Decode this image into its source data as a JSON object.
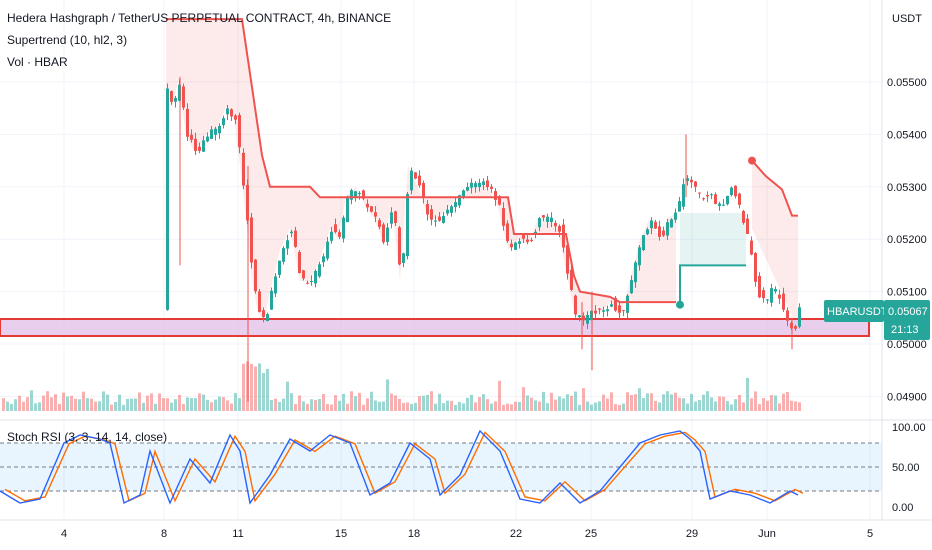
{
  "header": {
    "title": "Hedera Hashgraph / TetherUS PERPETUAL CONTRACT, 4h, BINANCE",
    "indicator_1": "Supertrend (10, hl2, 3)",
    "indicator_2": "Vol · HBAR"
  },
  "price_axis": {
    "currency": "USDT",
    "ticks": [
      "0.05500",
      "0.05400",
      "0.05300",
      "0.05200",
      "0.05100",
      "0.05000",
      "0.04900"
    ]
  },
  "price_tag": {
    "symbol": "HBARUSDT.P",
    "price": "0.05067",
    "countdown": "21:13"
  },
  "rsi": {
    "label": "Stoch RSI (3, 3, 14, 14, close)",
    "ticks": [
      "100.00",
      "50.00",
      "0.00"
    ]
  },
  "time_axis": {
    "ticks": [
      "4",
      "8",
      "11",
      "15",
      "18",
      "22",
      "25",
      "29",
      "Jun",
      "5"
    ]
  },
  "colors": {
    "up": "#26a69a",
    "down": "#ef5350",
    "supertrend_down": "#ef5350",
    "supertrend_up": "#26a69a",
    "stoch_k": "#2962ff",
    "stoch_d": "#ff6d00",
    "zone_border": "#e53935",
    "zone_fill": "#e1bee7",
    "tag_bg": "#26a69a"
  },
  "chart_data": {
    "type": "candlestick",
    "ylim": [
      0.0488,
      0.0563
    ],
    "zone": [
      0.05012,
      0.05042
    ],
    "supertrend_resistance_start": [
      0.0562,
      0.0562,
      0.0562,
      0.0555,
      0.0545,
      0.054,
      0.054,
      0.054,
      0.054,
      0.054,
      0.0537,
      0.053,
      0.0525,
      0.0525,
      0.0525
    ],
    "supertrend_support": [
      0.05075,
      0.0515,
      0.0515,
      0.0515
    ],
    "supertrend_resistance_end": [
      0.0535,
      0.0532,
      0.05295,
      0.05245
    ],
    "stoch_k_ticks": [
      0,
      50,
      100
    ],
    "stoch_bands": [
      20,
      80
    ]
  }
}
